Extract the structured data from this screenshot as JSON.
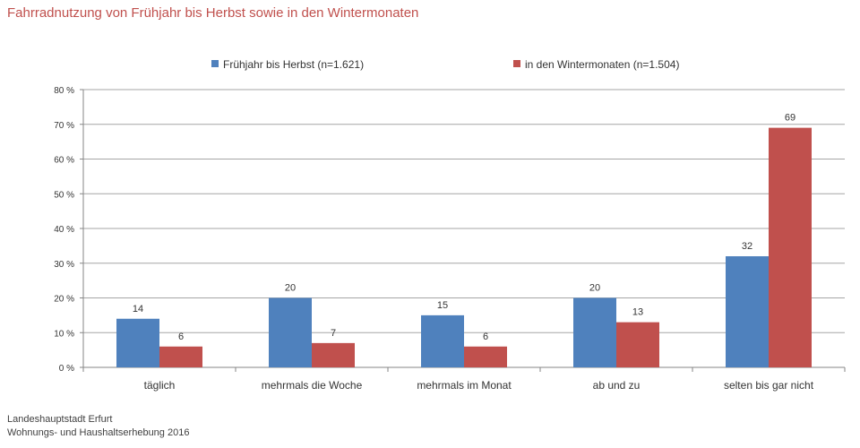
{
  "title": "Fahrradnutzung von Frühjahr bis Herbst sowie in den Wintermonaten",
  "source": {
    "line1": "Landeshauptstadt Erfurt",
    "line2": "Wohnungs- und Haushaltserhebung 2016"
  },
  "chart_data": {
    "type": "bar",
    "title": "Fahrradnutzung von Frühjahr bis Herbst sowie in den Wintermonaten",
    "categories": [
      "täglich",
      "mehrmals die Woche",
      "mehrmals im Monat",
      "ab und zu",
      "selten bis gar nicht"
    ],
    "series": [
      {
        "name": "Frühjahr bis Herbst (n=1.621)",
        "color": "#4f81bd",
        "values": [
          14,
          20,
          15,
          20,
          32
        ]
      },
      {
        "name": "in den Wintermonaten (n=1.504)",
        "color": "#c0504d",
        "values": [
          6,
          7,
          6,
          13,
          69
        ]
      }
    ],
    "ylim": [
      0,
      80
    ],
    "yticks": [
      0,
      10,
      20,
      30,
      40,
      50,
      60,
      70,
      80
    ],
    "ytick_labels": [
      "0 %",
      "10 %",
      "20 %",
      "30 %",
      "40 %",
      "50 %",
      "60 %",
      "70 %",
      "80 %"
    ],
    "grid": true,
    "legend_position": "top-center",
    "data_labels": true
  }
}
